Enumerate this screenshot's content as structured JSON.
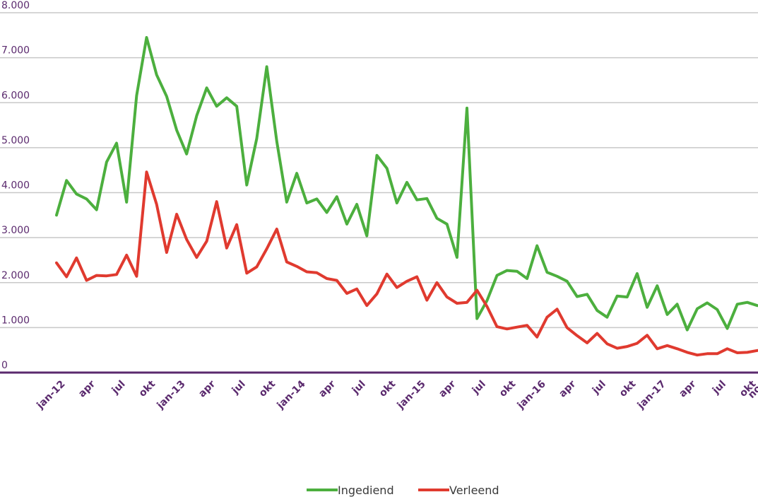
{
  "chart_data": {
    "type": "line",
    "title": "",
    "xlabel": "",
    "ylabel": "",
    "ylim": [
      0,
      8000
    ],
    "y_ticks": [
      "0",
      "1.000",
      "2.000",
      "3.000",
      "4.000",
      "5.000",
      "6.000",
      "7.000",
      "8.000"
    ],
    "y_tick_values": [
      0,
      1000,
      2000,
      3000,
      4000,
      5000,
      6000,
      7000,
      8000
    ],
    "x_ticks": [
      {
        "label": "jan-12",
        "index": 0
      },
      {
        "label": "apr",
        "index": 3
      },
      {
        "label": "jul",
        "index": 6
      },
      {
        "label": "okt",
        "index": 9
      },
      {
        "label": "jan-13",
        "index": 12
      },
      {
        "label": "apr",
        "index": 15
      },
      {
        "label": "jul",
        "index": 18
      },
      {
        "label": "okt",
        "index": 21
      },
      {
        "label": "jan-14",
        "index": 24
      },
      {
        "label": "apr",
        "index": 27
      },
      {
        "label": "jul",
        "index": 30
      },
      {
        "label": "okt",
        "index": 33
      },
      {
        "label": "jan-15",
        "index": 36
      },
      {
        "label": "apr",
        "index": 39
      },
      {
        "label": "jul",
        "index": 42
      },
      {
        "label": "okt",
        "index": 45
      },
      {
        "label": "jan-16",
        "index": 48
      },
      {
        "label": "apr",
        "index": 51
      },
      {
        "label": "jul",
        "index": 54
      },
      {
        "label": "okt",
        "index": 57
      },
      {
        "label": "jan-17",
        "index": 60
      },
      {
        "label": "apr",
        "index": 63
      },
      {
        "label": "jul",
        "index": 66
      },
      {
        "label": "okt",
        "index": 69
      },
      {
        "label": "nov",
        "index": 70
      }
    ],
    "grid": true,
    "legend_position": "bottom-center",
    "series": [
      {
        "name": "Ingediend",
        "color": "#4caf3e",
        "values": [
          3500,
          4270,
          3970,
          3860,
          3620,
          4680,
          5100,
          3790,
          6160,
          7450,
          6620,
          6140,
          5390,
          4860,
          5710,
          6330,
          5920,
          6110,
          5920,
          4170,
          5200,
          6800,
          5140,
          3790,
          4430,
          3770,
          3860,
          3560,
          3910,
          3300,
          3740,
          3040,
          4830,
          4540,
          3770,
          4230,
          3840,
          3870,
          3430,
          3300,
          2560,
          5880,
          1200,
          1600,
          2160,
          2270,
          2250,
          2090,
          2820,
          2230,
          2140,
          2030,
          1690,
          1740,
          1380,
          1230,
          1700,
          1680,
          2200,
          1450,
          1930,
          1290,
          1520,
          950,
          1420,
          1550,
          1400,
          980,
          1520,
          1560,
          1490
        ]
      },
      {
        "name": "Verleend",
        "color": "#e03a2f",
        "values": [
          2440,
          2130,
          2550,
          2050,
          2160,
          2150,
          2180,
          2610,
          2140,
          4460,
          3740,
          2670,
          3520,
          2960,
          2560,
          2920,
          3800,
          2770,
          3290,
          2210,
          2350,
          2750,
          3190,
          2460,
          2360,
          2240,
          2220,
          2090,
          2050,
          1760,
          1860,
          1490,
          1750,
          2190,
          1890,
          2030,
          2130,
          1610,
          2000,
          1680,
          1540,
          1560,
          1830,
          1470,
          1020,
          970,
          1010,
          1050,
          790,
          1230,
          1410,
          1000,
          820,
          660,
          870,
          640,
          540,
          580,
          650,
          830,
          530,
          600,
          530,
          450,
          390,
          420,
          420,
          530,
          440,
          450,
          490
        ]
      }
    ]
  }
}
